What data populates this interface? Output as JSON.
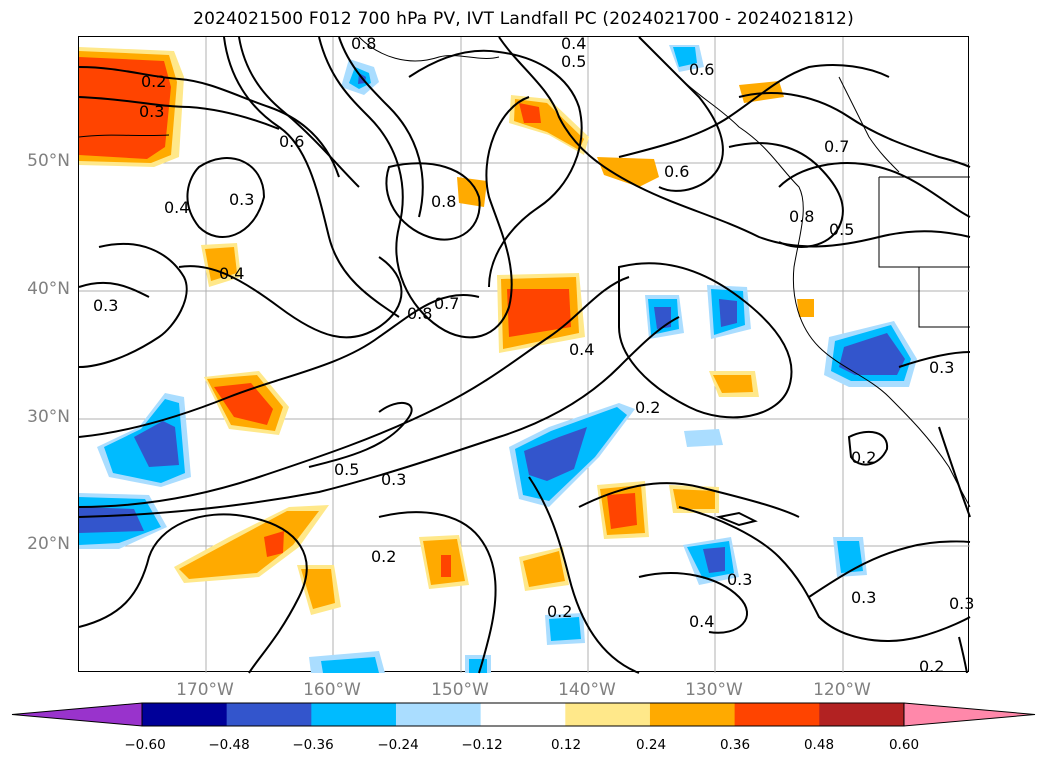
{
  "title": "2024021500 F012 700 hPa PV, IVT Landfall PC (2024021700 - 2024021812)",
  "lat_labels": [
    "50°N",
    "40°N",
    "30°N",
    "20°N"
  ],
  "lon_labels": [
    "170°W",
    "160°W",
    "150°W",
    "140°W",
    "130°W",
    "120°W"
  ],
  "colorbar": {
    "colors": [
      "#9933cc",
      "#000099",
      "#3355cc",
      "#00bbff",
      "#aaddff",
      "#ffffff",
      "#ffe88a",
      "#ffaa00",
      "#ff4400",
      "#b22222",
      "#ff88aa"
    ],
    "ticks": [
      "−0.60",
      "−0.48",
      "−0.36",
      "−0.24",
      "−0.12",
      "0.12",
      "0.24",
      "0.36",
      "0.48",
      "0.60"
    ]
  },
  "contour_labels": [
    "0.4",
    "0.5",
    "0.6",
    "0.2",
    "0.3",
    "0.6",
    "0.4",
    "0.3",
    "0.8",
    "0.6",
    "0.7",
    "0.8",
    "0.5",
    "0.4",
    "0.3",
    "0.8",
    "0.7",
    "0.4",
    "0.2",
    "0.3",
    "0.5",
    "0.3",
    "0.2",
    "0.2",
    "0.3",
    "0.2",
    "0.4",
    "0.3",
    "0.3",
    "0.2",
    "0.8"
  ]
}
